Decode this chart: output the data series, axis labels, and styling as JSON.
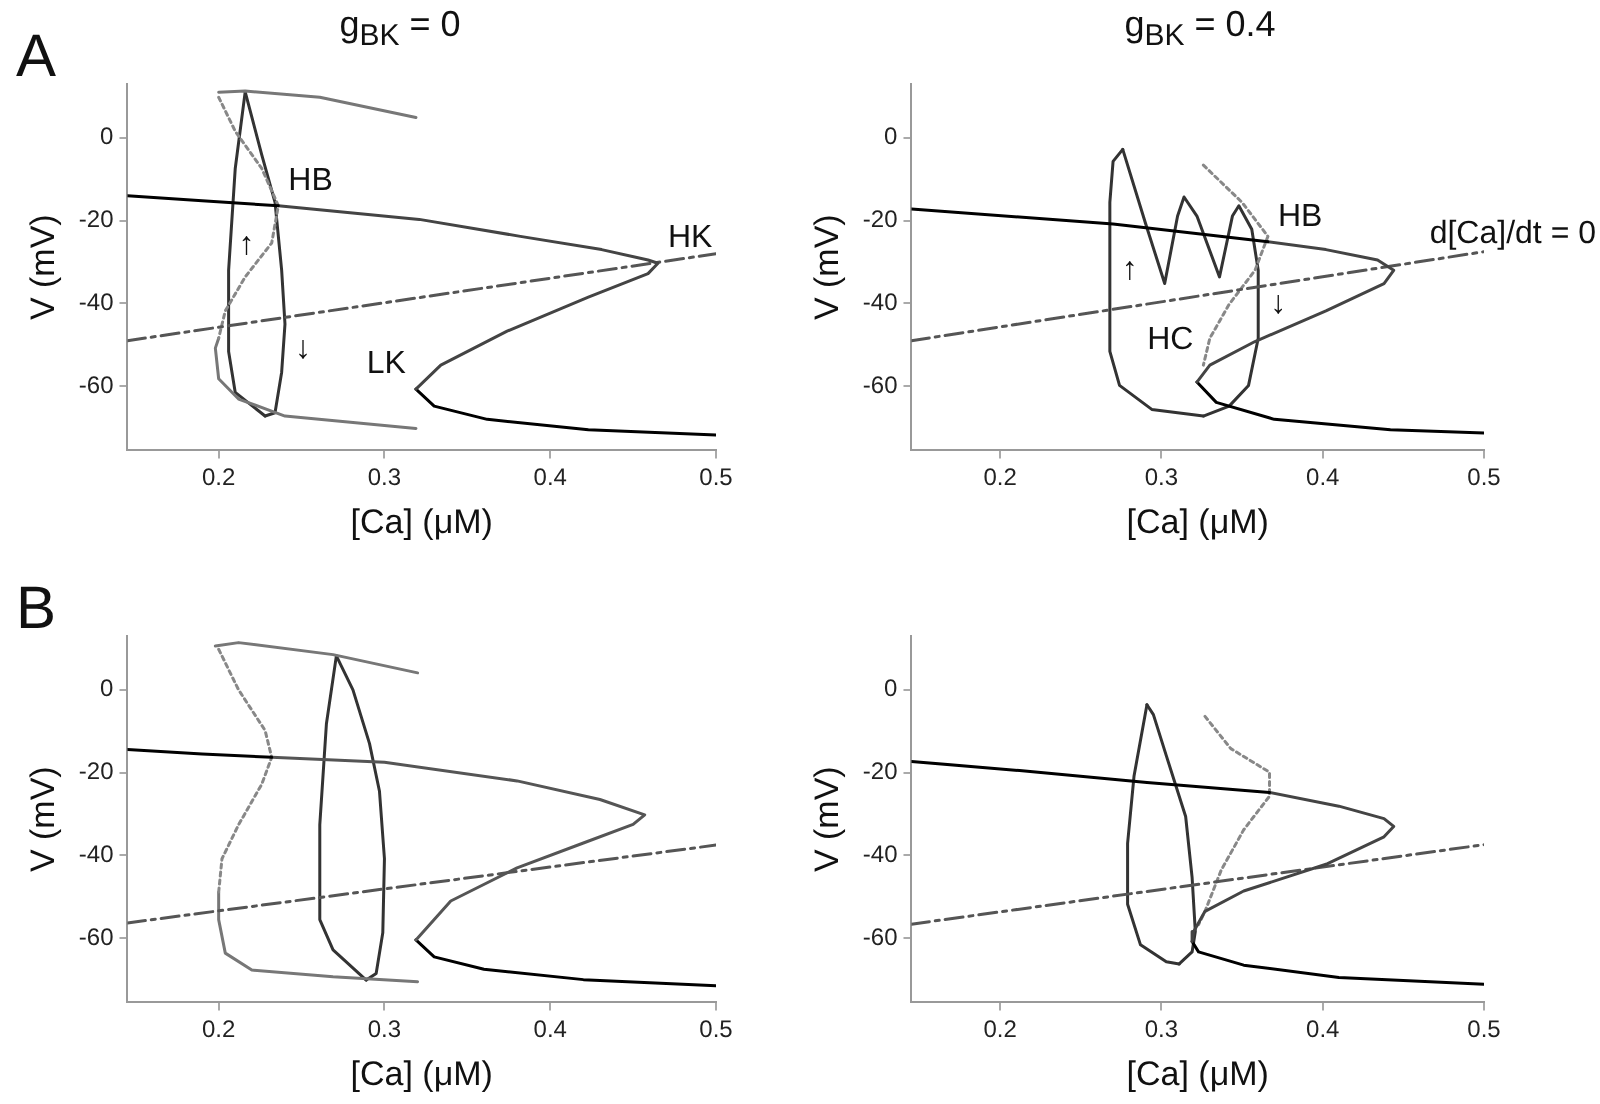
{
  "chart_data": [
    {
      "type": "line",
      "title": "g$_{BK}$ = 0",
      "xlabel": "[Ca] (μM)",
      "ylabel": "V (mV)",
      "xlim": [
        0.145,
        0.5
      ],
      "ylim": [
        -75.5,
        13
      ],
      "xticks": [
        0.2,
        0.3,
        0.4,
        0.5
      ],
      "yticks": [
        -60,
        -40,
        -20,
        0
      ],
      "grid": false,
      "legend": false,
      "marker": "none",
      "annotations": [
        "A",
        {
          "text": "HB",
          "x": 0.236,
          "y": -16.4
        },
        {
          "text": "HK",
          "x": 0.465,
          "y": -30.3
        },
        {
          "text": "LK",
          "x": 0.319,
          "y": -60.7
        },
        {
          "text": "↑",
          "x": 0.206,
          "y": -32
        },
        {
          "text": "↓",
          "x": 0.24,
          "y": -45
        }
      ],
      "series": [
        {
          "color": "#000000",
          "line_style": "solid",
          "x": [
            0.145,
            0.19,
            0.236
          ],
          "values": [
            -14,
            -15.2,
            -16.4
          ]
        },
        {
          "color": "#444444",
          "line_style": "solid",
          "x": [
            0.236,
            0.321,
            0.382,
            0.431,
            0.459,
            0.465,
            0.459,
            0.423,
            0.374,
            0.334,
            0.319
          ],
          "values": [
            -16.4,
            -19.7,
            -23.8,
            -27,
            -29.5,
            -30.3,
            -32.8,
            -38.5,
            -46.7,
            -54.9,
            -60.7
          ]
        },
        {
          "color": "#000000",
          "line_style": "solid",
          "x": [
            0.319,
            0.33,
            0.362,
            0.423,
            0.5
          ],
          "values": [
            -60.7,
            -64.8,
            -68,
            -70.5,
            -71.8
          ]
        },
        {
          "color": "#555555",
          "line_style": "dashed",
          "x": [
            0.145,
            0.5
          ],
          "values": [
            -49,
            -28
          ]
        },
        {
          "color": "#777777",
          "line_style": "solid",
          "x": [
            0.2,
            0.216,
            0.261,
            0.319
          ],
          "values": [
            11,
            11.3,
            9.8,
            4.9
          ]
        },
        {
          "color": "#888888",
          "line_style": "dotted",
          "x": [
            0.2,
            0.21,
            0.226,
            0.236,
            0.232,
            0.216,
            0.204,
            0.2
          ],
          "values": [
            9.8,
            1.6,
            -7.4,
            -16.4,
            -25.4,
            -33.6,
            -41.8,
            -48.4
          ]
        },
        {
          "color": "#777777",
          "line_style": "solid",
          "x": [
            0.2,
            0.198,
            0.2,
            0.212,
            0.24,
            0.319
          ],
          "values": [
            -48.4,
            -50.8,
            -58.2,
            -63.1,
            -67.2,
            -70.2
          ]
        },
        {
          "color": "#333333",
          "line_style": "solid",
          "x": [
            0.216,
            0.21,
            0.206,
            0.206,
            0.21,
            0.228
          ],
          "values": [
            11.1,
            -7.4,
            -32,
            -51.6,
            -61.5,
            -67.2
          ]
        },
        {
          "color": "#333333",
          "line_style": "solid",
          "x": [
            0.228,
            0.234,
            0.238,
            0.24,
            0.238,
            0.234,
            0.226,
            0.216
          ],
          "values": [
            -67.2,
            -66.4,
            -56.6,
            -45,
            -32,
            -15.6,
            -4.1,
            11.1
          ]
        }
      ]
    },
    {
      "type": "line",
      "title": "g$_{BK}$ = 0.4",
      "xlabel": "[Ca] (μM)",
      "ylabel": "V (mV)",
      "xlim": [
        0.145,
        0.5
      ],
      "ylim": [
        -75.5,
        13
      ],
      "xticks": [
        0.2,
        0.3,
        0.4,
        0.5
      ],
      "yticks": [
        -60,
        -40,
        -20,
        0
      ],
      "grid": false,
      "legend": false,
      "marker": "none",
      "annotations": [
        {
          "text": "HB",
          "x": 0.366,
          "y": -25.1
        },
        {
          "text": "d[Ca]/dt = 0",
          "x": 0.47,
          "y": -29.3
        },
        {
          "text": "HC",
          "x": 0.326,
          "y": -54.9
        },
        {
          "text": "↑",
          "x": 0.268,
          "y": -32
        },
        {
          "text": "↓",
          "x": 0.36,
          "y": -40.2
        }
      ],
      "series": [
        {
          "color": "#000000",
          "line_style": "solid",
          "x": [
            0.145,
            0.27,
            0.366
          ],
          "values": [
            -17.2,
            -20.8,
            -25.1
          ]
        },
        {
          "color": "#444444",
          "line_style": "solid",
          "x": [
            0.366,
            0.402,
            0.434,
            0.444,
            0.438,
            0.402,
            0.358,
            0.33,
            0.322
          ],
          "values": [
            -25.1,
            -27,
            -29.5,
            -32,
            -35.2,
            -41.8,
            -49.2,
            -54.9,
            -59
          ]
        },
        {
          "color": "#000000",
          "line_style": "solid",
          "x": [
            0.322,
            0.334,
            0.37,
            0.442,
            0.5
          ],
          "values": [
            -59,
            -63.9,
            -68,
            -70.5,
            -71.3
          ]
        },
        {
          "color": "#555555",
          "line_style": "dashed",
          "x": [
            0.145,
            0.5
          ],
          "values": [
            -49,
            -27.5
          ]
        },
        {
          "color": "#888888",
          "line_style": "dotted",
          "x": [
            0.326,
            0.35,
            0.366,
            0.358,
            0.342,
            0.33,
            0.326
          ],
          "values": [
            -6.6,
            -15.6,
            -23.8,
            -32,
            -40.2,
            -48.4,
            -54.9
          ]
        },
        {
          "color": "#333333",
          "line_style": "solid",
          "x": [
            0.276,
            0.29,
            0.302,
            0.31,
            0.314,
            0.322,
            0.336,
            0.344,
            0.348,
            0.356,
            0.36,
            0.36,
            0.354,
            0.342,
            0.326
          ],
          "values": [
            -2.8,
            -20.5,
            -35.2,
            -18.9,
            -14.3,
            -18.9,
            -33.6,
            -18.9,
            -16.4,
            -22.1,
            -32,
            -48.4,
            -59.8,
            -64.8,
            -67.2
          ]
        },
        {
          "color": "#333333",
          "line_style": "solid",
          "x": [
            0.326,
            0.294,
            0.274,
            0.268,
            0.268,
            0.27,
            0.276
          ],
          "values": [
            -67.2,
            -65.6,
            -59.8,
            -51.6,
            -15.6,
            -5.7,
            -2.8
          ]
        }
      ]
    },
    {
      "type": "line",
      "xlabel": "[Ca] (μM)",
      "ylabel": "V (mV)",
      "xlim": [
        0.145,
        0.5
      ],
      "ylim": [
        -75.5,
        13
      ],
      "xticks": [
        0.2,
        0.3,
        0.4,
        0.5
      ],
      "yticks": [
        -60,
        -40,
        -20,
        0
      ],
      "grid": false,
      "legend": false,
      "marker": "none",
      "annotations": [
        "B"
      ],
      "series": [
        {
          "color": "#000000",
          "line_style": "solid",
          "x": [
            0.145,
            0.19,
            0.232
          ],
          "values": [
            -14.4,
            -15.5,
            -16.3
          ]
        },
        {
          "color": "#555555",
          "line_style": "solid",
          "x": [
            0.232,
            0.3,
            0.38,
            0.43,
            0.457,
            0.45,
            0.42,
            0.38,
            0.34,
            0.319
          ],
          "values": [
            -16.3,
            -17.5,
            -22,
            -26.5,
            -30.2,
            -32.5,
            -37,
            -43,
            -51,
            -60.4
          ]
        },
        {
          "color": "#000000",
          "line_style": "solid",
          "x": [
            0.319,
            0.33,
            0.36,
            0.42,
            0.5
          ],
          "values": [
            -60.4,
            -64.5,
            -67.5,
            -70,
            -71.5
          ]
        },
        {
          "color": "#555555",
          "line_style": "dashed",
          "x": [
            0.145,
            0.5
          ],
          "values": [
            -56.3,
            -37.5
          ]
        },
        {
          "color": "#777777",
          "line_style": "solid",
          "x": [
            0.198,
            0.212,
            0.269,
            0.32
          ],
          "values": [
            10.6,
            11.4,
            8.5,
            4.1
          ]
        },
        {
          "color": "#888888",
          "line_style": "dotted",
          "x": [
            0.2,
            0.212,
            0.228,
            0.232,
            0.226,
            0.212,
            0.202,
            0.2
          ],
          "values": [
            9.8,
            0,
            -9.8,
            -16.3,
            -22.8,
            -32.6,
            -40.8,
            -48.9
          ]
        },
        {
          "color": "#777777",
          "line_style": "solid",
          "x": [
            0.2,
            0.2,
            0.204,
            0.22,
            0.269,
            0.32
          ],
          "values": [
            -48.9,
            -55.5,
            -63.6,
            -67.7,
            -69.3,
            -70.5
          ]
        },
        {
          "color": "#333333",
          "line_style": "solid",
          "x": [
            0.271,
            0.265,
            0.261,
            0.261,
            0.269,
            0.289
          ],
          "values": [
            8.2,
            -8.2,
            -32.6,
            -55.5,
            -62.8,
            -70.1
          ]
        },
        {
          "color": "#333333",
          "line_style": "solid",
          "x": [
            0.289,
            0.295,
            0.299,
            0.3,
            0.297,
            0.291,
            0.281,
            0.271
          ],
          "values": [
            -70.1,
            -68.5,
            -58.7,
            -40.8,
            -24.5,
            -13,
            0,
            8.2
          ]
        }
      ]
    },
    {
      "type": "line",
      "xlabel": "[Ca] (μM)",
      "ylabel": "V (mV)",
      "xlim": [
        0.145,
        0.5
      ],
      "ylim": [
        -75.5,
        13
      ],
      "xticks": [
        0.2,
        0.3,
        0.4,
        0.5
      ],
      "yticks": [
        -60,
        -40,
        -20,
        0
      ],
      "grid": false,
      "legend": false,
      "marker": "none",
      "series": [
        {
          "color": "#000000",
          "line_style": "solid",
          "x": [
            0.145,
            0.212,
            0.291,
            0.367
          ],
          "values": [
            -17.3,
            -19.5,
            -22.4,
            -24.8
          ]
        },
        {
          "color": "#444444",
          "line_style": "solid",
          "x": [
            0.367,
            0.41,
            0.438,
            0.444,
            0.438,
            0.403,
            0.351,
            0.327,
            0.32,
            0.319
          ],
          "values": [
            -24.8,
            -28.1,
            -31.1,
            -33,
            -35.5,
            -42,
            -48.6,
            -53.5,
            -58.4,
            -60.8
          ]
        },
        {
          "color": "#000000",
          "line_style": "solid",
          "x": [
            0.319,
            0.323,
            0.351,
            0.41,
            0.5
          ],
          "values": [
            -60.8,
            -63.3,
            -66.5,
            -69.5,
            -71.1
          ]
        },
        {
          "color": "#555555",
          "line_style": "dashed",
          "x": [
            0.145,
            0.5
          ],
          "values": [
            -56.6,
            -37.4
          ]
        },
        {
          "color": "#888888",
          "line_style": "dotted",
          "x": [
            0.327,
            0.343,
            0.367,
            0.367,
            0.351,
            0.337,
            0.327,
            0.323
          ],
          "values": [
            -6.4,
            -14.2,
            -19.9,
            -25.7,
            -33.8,
            -43.6,
            -53.5,
            -56.7
          ]
        },
        {
          "color": "#333333",
          "line_style": "solid",
          "x": [
            0.291,
            0.283,
            0.279,
            0.279,
            0.287,
            0.303,
            0.311
          ],
          "values": [
            -3.6,
            -20.8,
            -37.1,
            -51.8,
            -61.6,
            -65.7,
            -66.2
          ]
        },
        {
          "color": "#333333",
          "line_style": "solid",
          "x": [
            0.311,
            0.319,
            0.321,
            0.319,
            0.315,
            0.303,
            0.295,
            0.291
          ],
          "values": [
            -66.2,
            -63.3,
            -58.4,
            -45.3,
            -30.6,
            -15.9,
            -6,
            -3.6
          ]
        }
      ]
    }
  ]
}
